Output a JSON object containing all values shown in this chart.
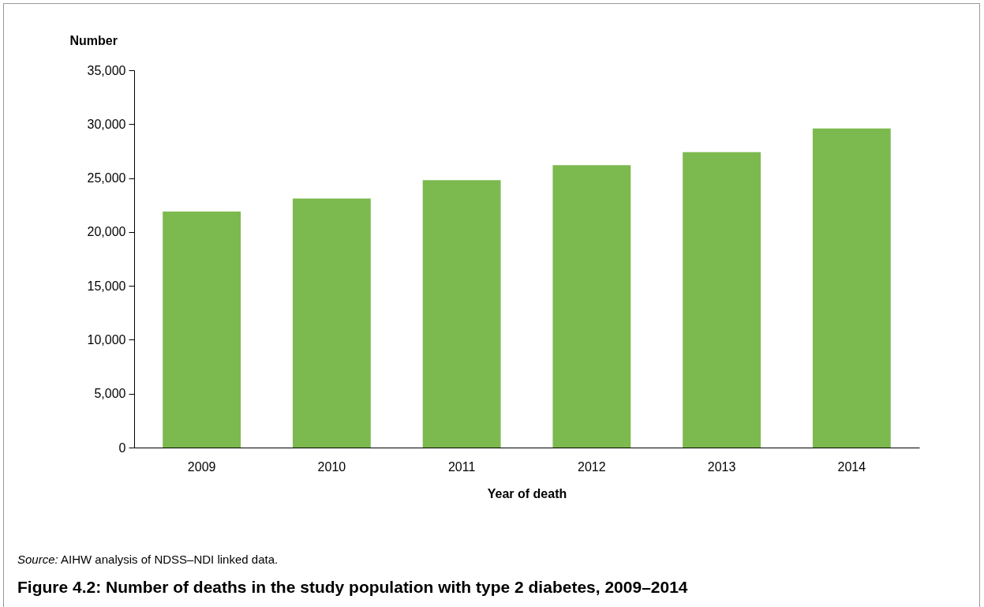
{
  "chart_data": {
    "type": "bar",
    "title": "Figure 4.2: Number of deaths in the study population with type 2 diabetes, 2009–2014",
    "xlabel": "Year of death",
    "ylabel": "Number",
    "annotations": [
      "Source: AIHW analysis of NDSS–NDI linked data."
    ],
    "categories": [
      "2009",
      "2010",
      "2011",
      "2012",
      "2013",
      "2014"
    ],
    "values": [
      21900,
      23100,
      24800,
      26200,
      27400,
      29600
    ],
    "color": "#7cb94e",
    "ylim": [
      0,
      35000
    ],
    "yticks": [
      0,
      {
        "value": 5000,
        "label": "5,000"
      },
      {
        "value": 10000,
        "label": "10,000"
      },
      {
        "value": 15000,
        "label": "15,000"
      },
      {
        "value": 20000,
        "label": "20,000"
      },
      {
        "value": 25000,
        "label": "25,000"
      },
      {
        "value": 30000,
        "label": "30,000"
      },
      {
        "value": 35000,
        "label": "35,000"
      }
    ],
    "grid": false
  }
}
